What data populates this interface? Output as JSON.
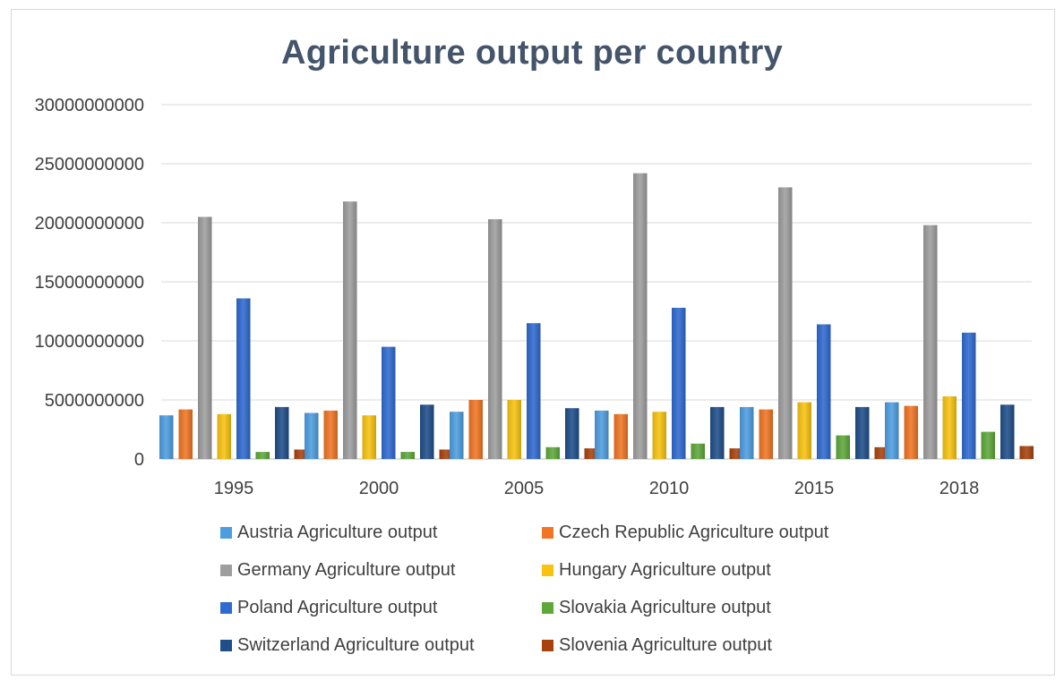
{
  "chart_data": {
    "type": "bar",
    "title": "Agriculture output per country",
    "xlabel": "",
    "ylabel": "",
    "categories": [
      "1995",
      "2000",
      "2005",
      "2010",
      "2015",
      "2018"
    ],
    "ylim": [
      0,
      30000000000
    ],
    "yticks": [
      "0",
      "5000000000",
      "10000000000",
      "15000000000",
      "20000000000",
      "25000000000",
      "30000000000"
    ],
    "grid": true,
    "legend_position": "bottom",
    "series": [
      {
        "name": "Austria Agriculture output",
        "color": "#4e9ddf",
        "values": [
          3700000000,
          3900000000,
          4000000000,
          4100000000,
          4400000000,
          4800000000
        ]
      },
      {
        "name": "Czech Republic Agriculture output",
        "color": "#f07524",
        "values": [
          4200000000,
          4100000000,
          5000000000,
          3800000000,
          4200000000,
          4500000000
        ]
      },
      {
        "name": "Germany Agriculture output",
        "color": "#9e9e9e",
        "values": [
          20500000000,
          21800000000,
          20300000000,
          24200000000,
          23000000000,
          19800000000
        ]
      },
      {
        "name": "Hungary Agriculture output",
        "color": "#f8c310",
        "values": [
          3800000000,
          3700000000,
          5000000000,
          4000000000,
          4800000000,
          5300000000
        ]
      },
      {
        "name": "Poland Agriculture output",
        "color": "#2f6ad0",
        "values": [
          13600000000,
          9500000000,
          11500000000,
          12800000000,
          11400000000,
          10700000000
        ]
      },
      {
        "name": "Slovakia Agriculture output",
        "color": "#5ea83a",
        "values": [
          600000000,
          600000000,
          1000000000,
          1300000000,
          2000000000,
          2300000000
        ]
      },
      {
        "name": "Switzerland Agriculture output",
        "color": "#1f4e8a",
        "values": [
          4400000000,
          4600000000,
          4300000000,
          4400000000,
          4400000000,
          4600000000
        ]
      },
      {
        "name": "Slovenia Agriculture output",
        "color": "#a8420d",
        "values": [
          800000000,
          800000000,
          900000000,
          900000000,
          1000000000,
          1100000000
        ]
      }
    ]
  }
}
